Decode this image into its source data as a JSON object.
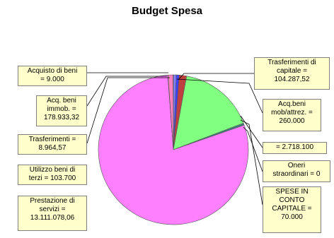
{
  "chart_data": {
    "type": "pie",
    "title": "Budget Spesa",
    "slices": [
      {
        "label": "Acquisto di beni = 9.000",
        "value": 9000,
        "color": "#c0c0c0"
      },
      {
        "label": "Acq. beni immob. = 178.933,32",
        "value": 178933.32,
        "color": "#ff80c0"
      },
      {
        "label": "Trasferimenti = 8.964,57",
        "value": 8964.57,
        "color": "#c0c0c0"
      },
      {
        "label": "Utilizzo beni di terzi = 103.700",
        "value": 103700,
        "color": "#8080ff"
      },
      {
        "label": "Prestazione di servizi = 13.111.078,06",
        "value": 13111078.06,
        "color": "#ff80ff"
      },
      {
        "label": "Trasferimenti di capitale = 104.287,52",
        "value": 104287.52,
        "color": "#4040ff"
      },
      {
        "label": "Acq.beni mob/attrez. = 260.000",
        "value": 260000,
        "color": "#c04040"
      },
      {
        "label": "= 2.718.100",
        "value": 2718100,
        "color": "#80ff80"
      },
      {
        "label": "Oneri straordinari = 0",
        "value": 0,
        "color": "#ffff80"
      },
      {
        "label": "SPESE IN CONTO CAPITALE = 70.000",
        "value": 70000,
        "color": "#408080"
      }
    ],
    "labels_display": [
      "Acquisto di beni\n= 9.000",
      "Acq. beni\nimmob. =\n178.933,32",
      "Trasferimenti =\n8.964,57",
      "Utilizzo beni di\nterzi = 103.700",
      "Prestazione di\nservizi =\n13.111.078,06",
      "Trasferimenti di\ncapitale =\n104.287,52",
      "Acq.beni\nmob/attrez. =\n260.000",
      "= 2.718.100",
      "Oneri\nstraordinari = 0",
      "SPESE IN\nCONTO\nCAPITALE =\n70.000"
    ],
    "legend": "none"
  }
}
